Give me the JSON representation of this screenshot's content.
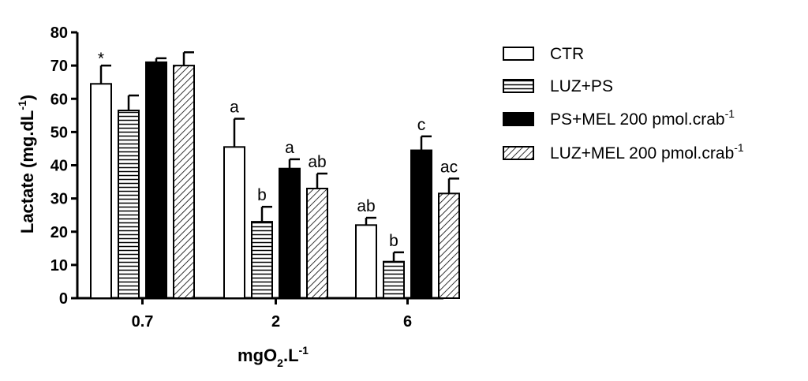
{
  "chart_data": {
    "type": "bar",
    "categories": [
      "0.7",
      "2",
      "6"
    ],
    "xlabel": {
      "main": "mgO",
      "sub": "2",
      "after": ".L",
      "sup": "-1"
    },
    "ylabel": {
      "main": "Lactate (mg.dL",
      "sup": "-1",
      "after": ")"
    },
    "ylim": [
      0,
      80
    ],
    "yticks": [
      "0",
      "10",
      "20",
      "30",
      "40",
      "50",
      "60",
      "70",
      "80"
    ],
    "grid": false,
    "legend_position": "right",
    "series": [
      {
        "name": "CTR",
        "legend_sup": "",
        "fill": "white",
        "values": [
          64.5,
          45.5,
          22
        ],
        "errors": [
          5.5,
          8.5,
          2.2
        ],
        "labels": [
          "*",
          "a",
          "ab"
        ]
      },
      {
        "name": "LUZ+PS",
        "legend_sup": "",
        "fill": "horizontal-stripes",
        "values": [
          56.5,
          23,
          11
        ],
        "errors": [
          4.5,
          4.5,
          2.8
        ],
        "labels": [
          "",
          "b",
          "b"
        ]
      },
      {
        "name": "PS+MEL 200 pmol.crab",
        "legend_sup": "-1",
        "fill": "black",
        "values": [
          71,
          39,
          44.5
        ],
        "errors": [
          1.2,
          2.8,
          4.2
        ],
        "labels": [
          "",
          "a",
          "c"
        ]
      },
      {
        "name": "LUZ+MEL 200 pmol.crab",
        "legend_sup": "-1",
        "fill": "diagonal-hatch",
        "values": [
          70,
          33,
          31.5
        ],
        "errors": [
          4,
          4.5,
          4.5
        ],
        "labels": [
          "",
          "ab",
          "ac"
        ]
      }
    ]
  }
}
